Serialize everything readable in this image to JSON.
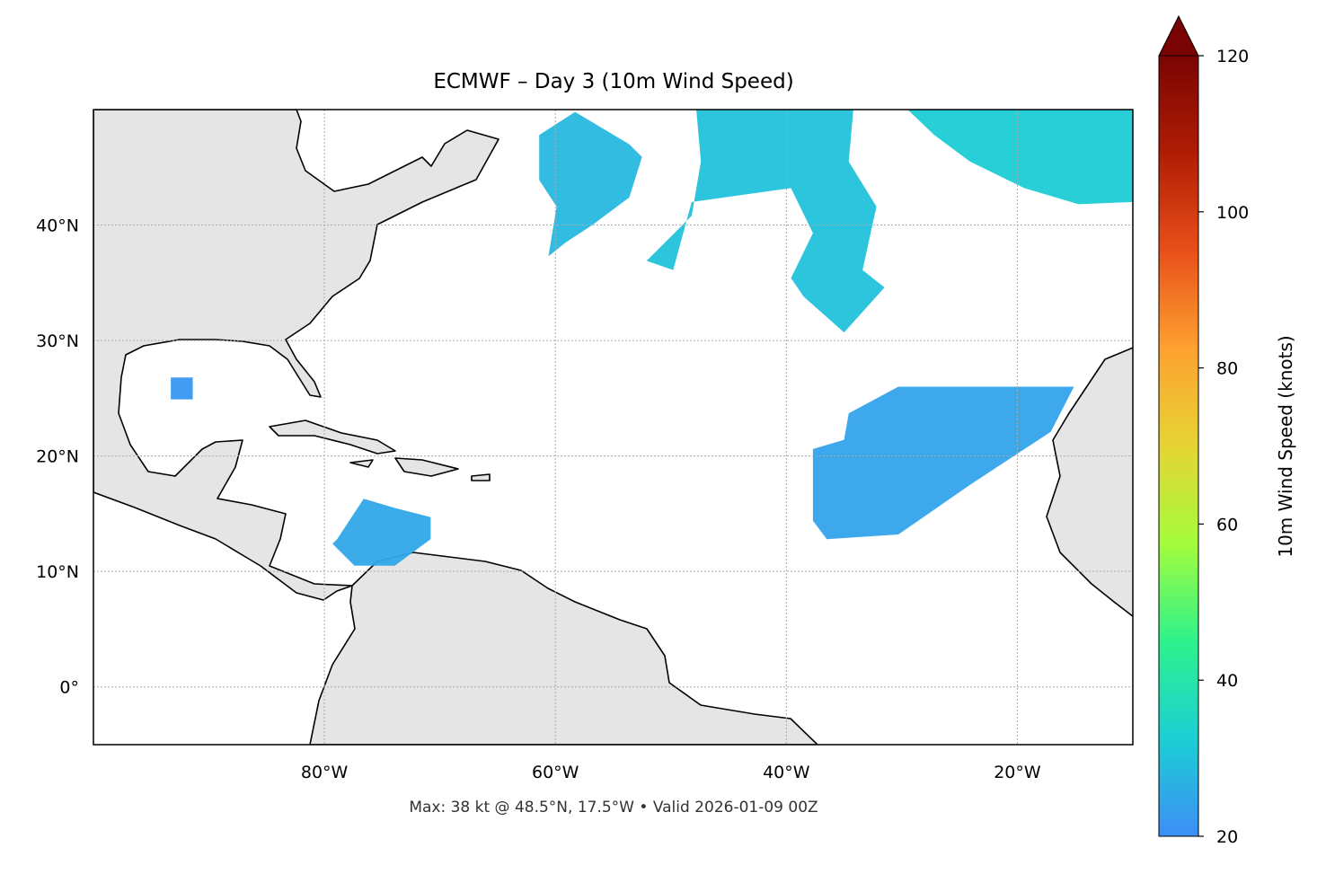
{
  "map": {
    "title": "ECMWF – Day 3 (10m Wind Speed)",
    "annotation": "Max: 38 kt @ 48.5°N, 17.5°W • Valid 2026-01-09 00Z",
    "xlim": [
      -100,
      -10
    ],
    "ylim": [
      -5,
      50
    ],
    "xticks": [
      {
        "value": -80,
        "label": "80°W"
      },
      {
        "value": -60,
        "label": "60°W"
      },
      {
        "value": -40,
        "label": "40°W"
      },
      {
        "value": -20,
        "label": "20°W"
      }
    ],
    "yticks": [
      {
        "value": 0,
        "label": "0°"
      },
      {
        "value": 10,
        "label": "10°N"
      },
      {
        "value": 20,
        "label": "20°N"
      },
      {
        "value": 30,
        "label": "30°N"
      },
      {
        "value": 40,
        "label": "40°N"
      }
    ],
    "grid": true,
    "wind_regions": [
      {
        "speed": 28,
        "lon": [
          -61.4,
          -58.3,
          -53.6,
          -52.5,
          -53.6,
          -56.8,
          -59.1,
          -60.6,
          -59.9,
          -61.4
        ],
        "lat": [
          47.8,
          49.8,
          47.0,
          45.9,
          42.4,
          40.0,
          38.5,
          37.3,
          41.6,
          43.9
        ]
      },
      {
        "speed": 30,
        "lon": [
          -47.8,
          -34.2,
          -34.6,
          -32.2,
          -33.4,
          -31.5,
          -35.0,
          -38.5,
          -39.6,
          -37.7,
          -39.6,
          -48.2,
          -49.8,
          -52.1,
          -48.2,
          -47.4
        ],
        "lat": [
          50,
          50,
          45.5,
          41.6,
          36.1,
          34.6,
          30.7,
          33.8,
          35.4,
          39.3,
          43.2,
          42.0,
          36.1,
          36.9,
          40.8,
          45.5
        ]
      },
      {
        "speed": 32,
        "lon": [
          -29.5,
          -10,
          -10,
          -14.7,
          -19.4,
          -24.1,
          -27.2
        ],
        "lat": [
          50,
          50,
          42.0,
          41.8,
          43.2,
          45.5,
          47.8
        ]
      },
      {
        "speed": 24,
        "lon": [
          -34.6,
          -30.3,
          -22.5,
          -15.1,
          -17.1,
          -24.1,
          -30.3,
          -36.5,
          -37.7,
          -37.7,
          -35.0
        ],
        "lat": [
          23.7,
          26.0,
          26.0,
          26.0,
          22.1,
          17.5,
          13.2,
          12.8,
          14.4,
          20.6,
          21.4
        ]
      },
      {
        "speed": 25,
        "lon": [
          -78.9,
          -76.6,
          -73.9,
          -70.8,
          -70.8,
          -73.9,
          -77.4,
          -79.3
        ],
        "lat": [
          12.8,
          16.3,
          15.5,
          14.7,
          12.8,
          10.5,
          10.5,
          12.4
        ]
      },
      {
        "speed": 22,
        "lon": [
          -93.3,
          -91.4,
          -91.4,
          -93.3
        ],
        "lat": [
          26.8,
          26.8,
          24.9,
          24.9
        ]
      }
    ]
  },
  "colorbar": {
    "label": "10m Wind Speed (knots)",
    "lim": [
      20,
      120
    ],
    "ticks": [
      20,
      40,
      60,
      80,
      100,
      120
    ],
    "extend": "max",
    "colormap": [
      "#3e8ef6",
      "#1bcfd4",
      "#2ef28c",
      "#a4fc3c",
      "#e6d434",
      "#fea130",
      "#e8501a",
      "#b01d04",
      "#7a0403"
    ]
  }
}
